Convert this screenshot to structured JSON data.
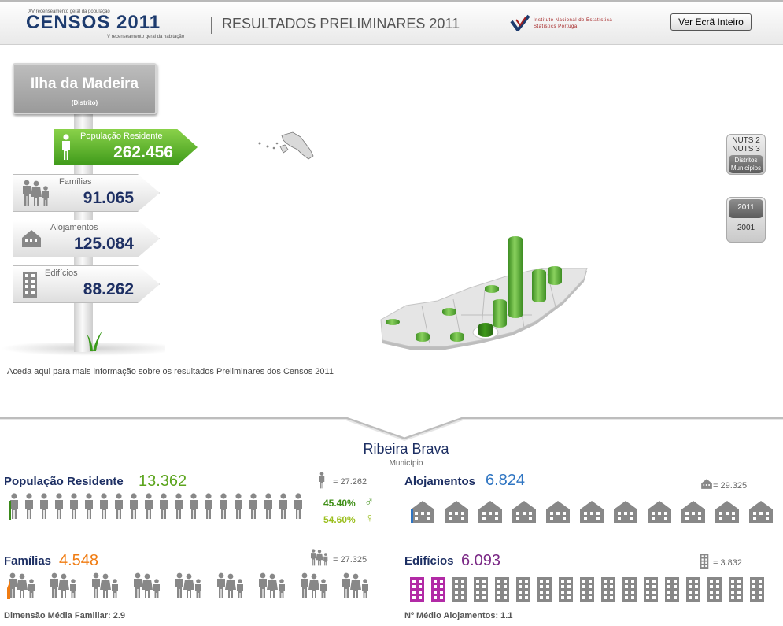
{
  "header": {
    "logo_top": "XV recenseamento geral da população",
    "logo_main": "CENSOS 2011",
    "logo_bottom": "V recenseamento geral da habitação",
    "title": "RESULTADOS PRELIMINARES 2011",
    "ine_line1": "Instituto Nacional de Estatística",
    "ine_line2": "Statistics Portugal",
    "fullscreen_label": "Ver Ecrã Inteiro"
  },
  "signpost": {
    "region_name": "Ilha da Madeira",
    "region_type": "(Distrito)",
    "items": [
      {
        "label": "População Residente",
        "value": "262.456"
      },
      {
        "label": "Famílias",
        "value": "91.065"
      },
      {
        "label": "Alojamentos",
        "value": "125.084"
      },
      {
        "label": "Edifícios",
        "value": "88.262"
      }
    ]
  },
  "info_link": "Aceda aqui para mais informação sobre os resultados Preliminares dos Censos 2011",
  "controls": {
    "nuts2": "NUTS 2",
    "nuts3": "NUTS 3",
    "distritos": "Distritos",
    "municipios": "Municípios",
    "year_2011": "2011",
    "year_2001": "2001"
  },
  "municipality": {
    "name": "Ribeira Brava",
    "type": "Município"
  },
  "stats": {
    "populacao": {
      "title": "População Residente",
      "value": "13.362",
      "value_color": "#5ca51e",
      "ref": "= 27.262",
      "male_pct": "45.40%",
      "female_pct": "54.60%",
      "male_icon": "male-symbol-icon",
      "female_icon": "female-symbol-icon"
    },
    "alojamentos": {
      "title": "Alojamentos",
      "value": "6.824",
      "value_color": "#2f75c2",
      "ref": "= 29.325"
    },
    "familias": {
      "title": "Famílias",
      "value": "4.548",
      "value_color": "#f07c12",
      "ref": "= 27.325",
      "footer": "Dimensão Média Familiar: 2.9"
    },
    "edificios": {
      "title": "Edifícios",
      "value": "6.093",
      "value_color": "#7b2a86",
      "ref": "= 3.832",
      "footer": "Nº Médio Alojamentos: 1.1"
    }
  },
  "colors": {
    "brand_blue": "#1d2f63",
    "green": "#5ca51e",
    "olive": "#9bbf1e",
    "purple": "#b22aa6",
    "blue": "#2f75c2",
    "orange": "#f07c12"
  }
}
